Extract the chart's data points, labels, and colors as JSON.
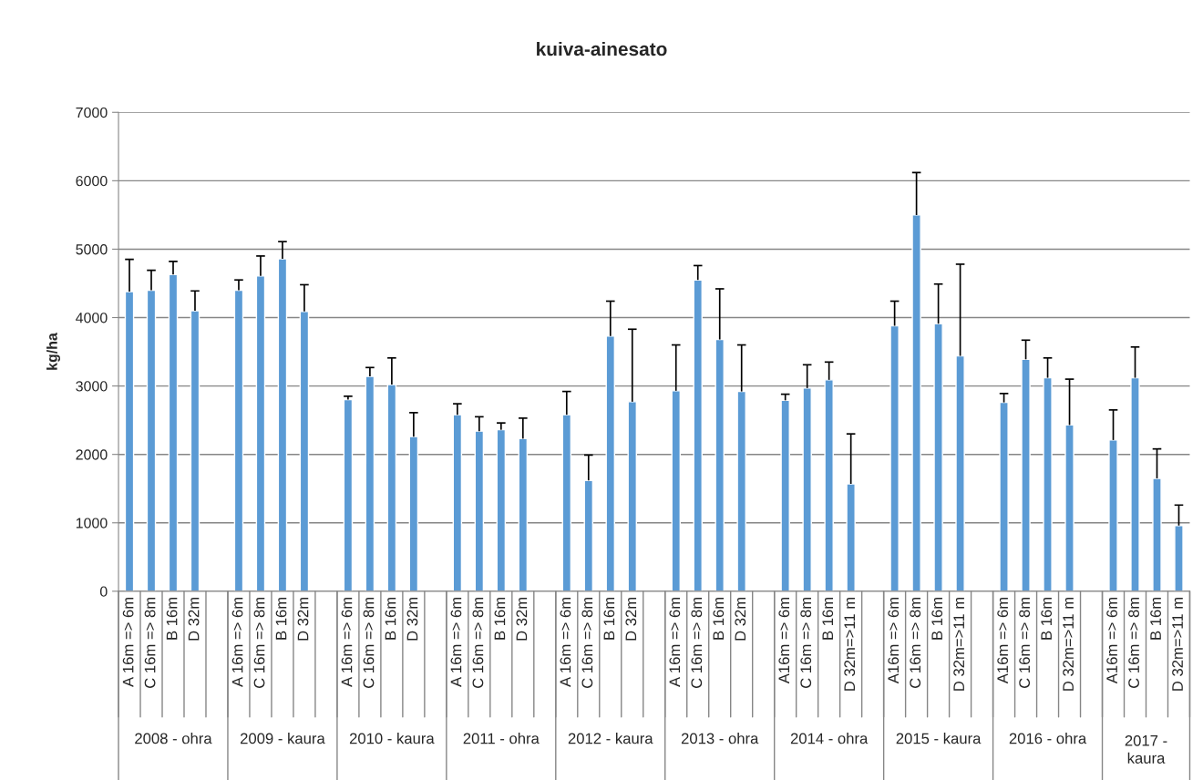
{
  "chart_data": {
    "type": "bar",
    "title": "kuiva-ainesato",
    "ylabel": "kg/ha",
    "categories": [
      "A 16m => 6m",
      "C 16m => 8m",
      "B 16m",
      "D 32m",
      null,
      "A 16m => 6m",
      "C 16m => 8m",
      "B 16m",
      "D 32m",
      null,
      "A 16m => 6m",
      "C 16m => 8m",
      "B 16m",
      "D 32m",
      null,
      "A 16m => 6m",
      "C 16m => 8m",
      "B 16m",
      "D 32m",
      null,
      "A 16m => 6m",
      "C 16m => 8m",
      "B 16m",
      "D 32m",
      null,
      "A 16m => 6m",
      "C 16m => 8m",
      "B 16m",
      "D 32m",
      null,
      "A16m => 6m",
      "C 16m => 8m",
      "B 16m",
      "D 32m=>11 m",
      null,
      "A16m => 6m",
      "C 16m => 8m",
      "B 16m",
      "D 32m=>11 m",
      null,
      "A16m => 6m",
      "C 16m => 8m",
      "B 16m",
      "D 32m=>11 m",
      null,
      "A16m => 6m",
      "C 16m => 8m",
      "B 16m",
      "D 32m=>11 m"
    ],
    "values": [
      4380,
      4400,
      4630,
      4100,
      null,
      4400,
      4610,
      4860,
      4090,
      null,
      2800,
      3140,
      3020,
      2260,
      null,
      2580,
      2340,
      2360,
      2230,
      null,
      2580,
      1620,
      3730,
      2770,
      null,
      2930,
      4550,
      3680,
      2920,
      null,
      2790,
      2970,
      3090,
      1570,
      null,
      3880,
      5500,
      3910,
      3440,
      null,
      2760,
      3390,
      3120,
      2430,
      null,
      2210,
      3120,
      1650,
      960
    ],
    "errors": [
      [
        4380,
        4850
      ],
      [
        4400,
        4690
      ],
      [
        4630,
        4820
      ],
      [
        4100,
        4390
      ],
      null,
      [
        4400,
        4550
      ],
      [
        4610,
        4900
      ],
      [
        4860,
        5110
      ],
      [
        4090,
        4480
      ],
      null,
      [
        2800,
        2850
      ],
      [
        3140,
        3270
      ],
      [
        3020,
        3410
      ],
      [
        2260,
        2610
      ],
      null,
      [
        2580,
        2740
      ],
      [
        2340,
        2550
      ],
      [
        2360,
        2460
      ],
      [
        2230,
        2530
      ],
      null,
      [
        2580,
        2920
      ],
      [
        1620,
        1990
      ],
      [
        3730,
        4240
      ],
      [
        2770,
        3830
      ],
      null,
      [
        2930,
        3600
      ],
      [
        4550,
        4760
      ],
      [
        3680,
        4420
      ],
      [
        2920,
        3600
      ],
      null,
      [
        2790,
        2880
      ],
      [
        2970,
        3310
      ],
      [
        3090,
        3350
      ],
      [
        1570,
        2300
      ],
      null,
      [
        3880,
        4240
      ],
      [
        5500,
        6120
      ],
      [
        3910,
        4490
      ],
      [
        3440,
        4780
      ],
      null,
      [
        2760,
        2890
      ],
      [
        3390,
        3670
      ],
      [
        3120,
        3410
      ],
      [
        2430,
        3100
      ],
      null,
      [
        2210,
        2650
      ],
      [
        3120,
        3570
      ],
      [
        1650,
        2080
      ],
      [
        960,
        1260
      ]
    ],
    "color": "#5b9bd5",
    "ylim": [
      0,
      7000
    ],
    "yticks": [
      0,
      1000,
      2000,
      3000,
      4000,
      5000,
      6000,
      7000
    ],
    "grid": "y",
    "annotations": [
      "2008 - ohra",
      "2009 - kaura",
      "2010 - kaura",
      "2011 - ohra",
      "2012 - kaura",
      "2013 - ohra",
      "2014 - ohra",
      "2015 - kaura",
      "2016 - ohra",
      "2017 - kaura"
    ]
  }
}
